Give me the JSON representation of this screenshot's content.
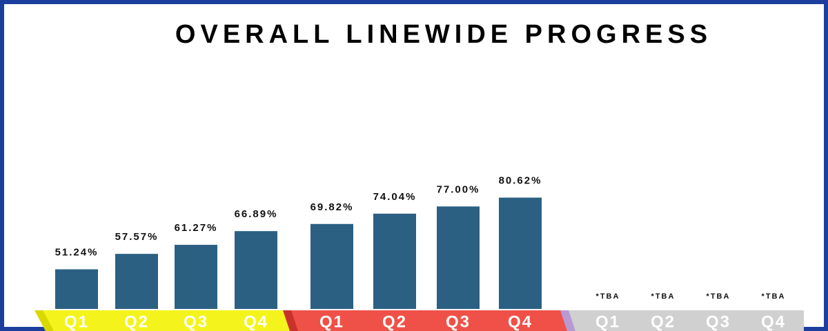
{
  "chart_data": {
    "type": "bar",
    "title": "OVERALL LINEWIDE PROGRESS",
    "categories": [
      "Q1",
      "Q2",
      "Q3",
      "Q4",
      "Q1",
      "Q2",
      "Q3",
      "Q4",
      "Q1",
      "Q2",
      "Q3",
      "Q4"
    ],
    "values": [
      51.24,
      57.57,
      61.27,
      66.89,
      69.82,
      74.04,
      77.0,
      80.62,
      null,
      null,
      null,
      null
    ],
    "value_labels": [
      "51.24%",
      "57.57%",
      "61.27%",
      "66.89%",
      "69.82%",
      "74.04%",
      "77.00%",
      "80.62%",
      "*TBA",
      "*TBA",
      "*TBA",
      "*TBA"
    ],
    "color": "#2b6083",
    "ylim": [
      35,
      100
    ]
  }
}
